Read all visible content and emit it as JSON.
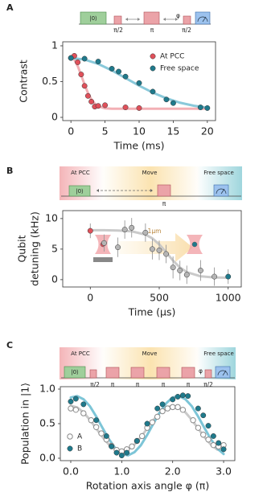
{
  "chart_data": [
    {
      "type": "scatter",
      "panel": "A",
      "diagram": {
        "labels": [
          "|0⟩",
          "π/2",
          "π",
          "φ",
          "π/2"
        ]
      },
      "xlabel": "Time (ms)",
      "ylabel": [
        "Contrast"
      ],
      "xlim": [
        -1.2,
        21.2
      ],
      "xticks": [
        0,
        5,
        10,
        15,
        20
      ],
      "ylim": [
        -0.045,
        1.056
      ],
      "yticks": [
        0,
        0.5,
        1
      ],
      "legend": "upper right",
      "series": [
        {
          "name": "At PCC",
          "color": "#e0505a",
          "marker": "filled",
          "x": [
            0,
            0.5,
            1,
            1.5,
            2,
            2.5,
            3,
            3.5,
            4,
            5,
            8,
            10
          ],
          "values": [
            0.83,
            0.86,
            0.77,
            0.6,
            0.44,
            0.3,
            0.22,
            0.15,
            0.16,
            0.17,
            0.14,
            0.13
          ]
        },
        {
          "name": "Free space",
          "color": "#1f7a8c",
          "marker": "filled",
          "x": [
            0,
            2,
            4,
            6,
            7,
            8,
            10,
            12,
            14,
            15,
            19,
            20
          ],
          "values": [
            0.83,
            0.82,
            0.78,
            0.68,
            0.64,
            0.57,
            0.48,
            0.36,
            0.25,
            0.2,
            0.14,
            0.13
          ]
        }
      ],
      "fits": [
        {
          "color": "#f2a7ad",
          "x": [
            0,
            0.5,
            1,
            1.5,
            2,
            2.5,
            3,
            3.5,
            4,
            5,
            6,
            8,
            10,
            12,
            14,
            16,
            18,
            20
          ],
          "values": [
            0.84,
            0.807,
            0.716,
            0.591,
            0.458,
            0.341,
            0.251,
            0.191,
            0.155,
            0.126,
            0.121,
            0.12,
            0.12,
            0.12,
            0.12,
            0.12,
            0.12,
            0.12
          ]
        },
        {
          "color": "#7cc3d6",
          "x": [
            0,
            2,
            4,
            6,
            8,
            10,
            12,
            14,
            16,
            18,
            20
          ],
          "values": [
            0.83,
            0.808,
            0.747,
            0.656,
            0.55,
            0.443,
            0.346,
            0.266,
            0.205,
            0.163,
            0.136
          ]
        }
      ]
    },
    {
      "type": "scatter",
      "panel": "B",
      "diagram": {
        "labels": [
          "At PCC",
          "Move",
          "Free space",
          "|0⟩",
          "π"
        ]
      },
      "annotation": "1μm",
      "xlabel": "Time (μs)",
      "ylabel": [
        "Qubit",
        "detuning (kHz)"
      ],
      "xlim": [
        -200,
        1095
      ],
      "xticks": [
        0,
        500,
        1000
      ],
      "ylim": [
        -1.2,
        11.3
      ],
      "yticks": [
        0,
        5,
        10
      ],
      "series": [
        {
          "color": "#b5b5b5",
          "marker": "filled",
          "x": [
            0,
            100,
            200,
            250,
            300,
            400,
            450,
            500,
            550,
            600,
            650,
            700,
            800,
            900,
            1000
          ],
          "values": [
            8,
            6,
            5.3,
            8.2,
            8.5,
            7.7,
            5,
            4.8,
            4.2,
            2,
            1.5,
            0.8,
            1.5,
            0.5,
            0.5
          ],
          "errors": [
            1.2,
            1.4,
            1.6,
            1.5,
            1.6,
            1.5,
            1.7,
            1.6,
            1.5,
            1.8,
            1.6,
            1.5,
            1.7,
            1.5,
            1.2
          ],
          "point_colors": [
            "#e0505a",
            "#b5b5b5",
            "#b5b5b5",
            "#b5b5b5",
            "#b5b5b5",
            "#b5b5b5",
            "#b5b5b5",
            "#b5b5b5",
            "#b5b5b5",
            "#b5b5b5",
            "#b5b5b5",
            "#b5b5b5",
            "#b5b5b5",
            "#b5b5b5",
            "#1f7a8c"
          ]
        }
      ],
      "fits": [
        {
          "color": "#c4c4c4",
          "x": [
            0,
            100,
            200,
            300,
            400,
            450,
            500,
            550,
            600,
            650,
            700,
            800,
            900,
            1000
          ],
          "values": [
            8.1,
            8.09,
            8.05,
            7.91,
            7.38,
            6.76,
            5.78,
            4.48,
            3.12,
            1.99,
            1.23,
            0.547,
            0.36,
            0.31
          ]
        }
      ]
    },
    {
      "type": "scatter",
      "panel": "C",
      "diagram": {
        "labels": [
          "At PCC",
          "Move",
          "Free space",
          "|0⟩",
          "π/2",
          "π",
          "π",
          "π",
          "π",
          "φ",
          "π/2"
        ]
      },
      "xlabel": "Rotation axis angle φ (π)",
      "ylabel": [
        "Population in |1⟩"
      ],
      "xlim": [
        -0.205,
        3.22
      ],
      "xticks": [
        {
          "value": 0,
          "label": "0.0"
        },
        {
          "value": 1,
          "label": "1.0"
        },
        {
          "value": 2,
          "label": "2.0"
        },
        {
          "value": 3,
          "label": "3.0"
        }
      ],
      "ylim": [
        -0.035,
        1.035
      ],
      "yticks": [
        {
          "value": 0,
          "label": "0.0"
        },
        {
          "value": 0.5,
          "label": "0.5"
        },
        {
          "value": 1,
          "label": "1.0"
        }
      ],
      "legend": "lower left",
      "series": [
        {
          "name": "A",
          "color": "#8a8a8a",
          "marker": "open",
          "x": [
            0,
            0.1,
            0.25,
            0.4,
            0.5,
            0.6,
            0.7,
            0.8,
            0.9,
            1.0,
            1.1,
            1.2,
            1.3,
            1.4,
            1.5,
            1.6,
            1.7,
            1.8,
            1.9,
            2.0,
            2.1,
            2.2,
            2.4,
            2.5,
            2.6,
            2.7,
            2.8,
            2.9,
            3.0
          ],
          "values": [
            0.72,
            0.7,
            0.65,
            0.55,
            0.45,
            0.36,
            0.27,
            0.18,
            0.12,
            0.1,
            0.13,
            0.17,
            0.25,
            0.32,
            0.44,
            0.52,
            0.6,
            0.68,
            0.72,
            0.74,
            0.74,
            0.7,
            0.55,
            0.44,
            0.34,
            0.27,
            0.19,
            0.17,
            0.19
          ]
        },
        {
          "name": "B",
          "color": "#1f7a8c",
          "marker": "filled",
          "x": [
            0,
            0.1,
            0.25,
            0.5,
            0.7,
            0.8,
            0.9,
            1.0,
            1.1,
            1.3,
            1.5,
            1.7,
            1.8,
            2.0,
            2.1,
            2.2,
            2.3,
            2.5,
            2.6,
            2.7,
            2.8,
            2.9,
            3.0
          ],
          "values": [
            0.82,
            0.86,
            0.78,
            0.55,
            0.32,
            0.17,
            0.08,
            0.04,
            0.08,
            0.25,
            0.5,
            0.72,
            0.78,
            0.85,
            0.89,
            0.91,
            0.9,
            0.72,
            0.62,
            0.47,
            0.32,
            0.22,
            0.13
          ]
        }
      ],
      "fits": [
        {
          "color": "#c4c4c4",
          "x": [
            0,
            0.125,
            0.25,
            0.375,
            0.5,
            0.625,
            0.75,
            0.875,
            1,
            1.125,
            1.25,
            1.375,
            1.5,
            1.625,
            1.75,
            1.875,
            2,
            2.125,
            2.25,
            2.375,
            2.5,
            2.625,
            2.75,
            2.875,
            3
          ],
          "values": [
            0.76,
            0.735,
            0.663,
            0.556,
            0.43,
            0.304,
            0.197,
            0.125,
            0.1,
            0.125,
            0.197,
            0.304,
            0.43,
            0.556,
            0.663,
            0.735,
            0.76,
            0.735,
            0.663,
            0.556,
            0.43,
            0.304,
            0.197,
            0.125,
            0.1
          ]
        },
        {
          "color": "#6fbfd3",
          "x": [
            0,
            0.125,
            0.25,
            0.375,
            0.5,
            0.625,
            0.75,
            0.875,
            1,
            1.125,
            1.25,
            1.375,
            1.5,
            1.625,
            1.75,
            1.875,
            2,
            2.125,
            2.25,
            2.375,
            2.5,
            2.625,
            2.75,
            2.875,
            3
          ],
          "values": [
            0.879,
            0.899,
            0.853,
            0.753,
            0.603,
            0.436,
            0.275,
            0.143,
            0.061,
            0.041,
            0.087,
            0.187,
            0.337,
            0.504,
            0.665,
            0.797,
            0.879,
            0.899,
            0.853,
            0.753,
            0.603,
            0.436,
            0.275,
            0.143,
            0.061
          ]
        }
      ]
    }
  ]
}
